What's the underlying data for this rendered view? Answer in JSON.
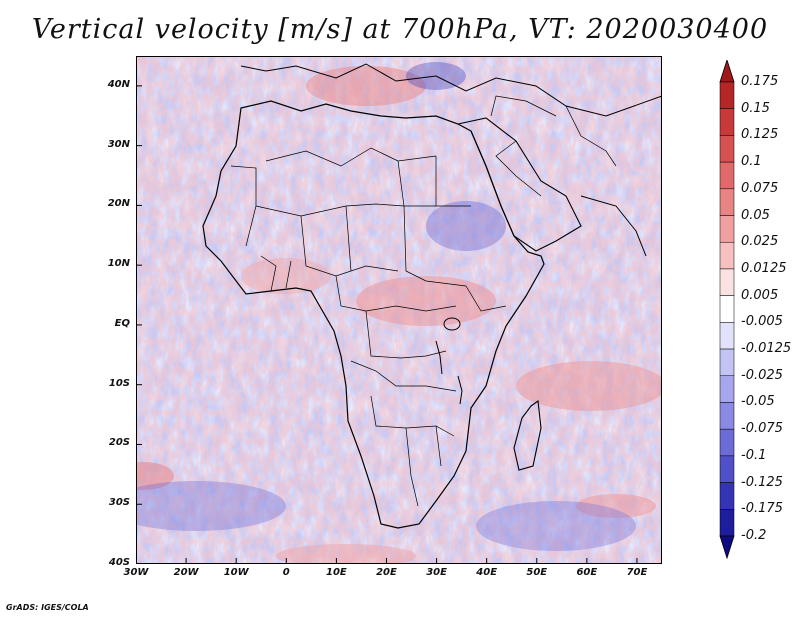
{
  "title": "Vertical velocity [m/s] at 700hPa, VT: 2020030400",
  "credit": "GrADS: IGES/COLA",
  "map": {
    "region": "Africa",
    "lon_range": [
      -30,
      75
    ],
    "lat_range": [
      -40,
      45
    ],
    "lat_ticks": [
      {
        "value": 40,
        "label": "40N"
      },
      {
        "value": 30,
        "label": "30N"
      },
      {
        "value": 20,
        "label": "20N"
      },
      {
        "value": 10,
        "label": "10N"
      },
      {
        "value": 0,
        "label": "EQ"
      },
      {
        "value": -10,
        "label": "10S"
      },
      {
        "value": -20,
        "label": "20S"
      },
      {
        "value": -30,
        "label": "30S"
      },
      {
        "value": -40,
        "label": "40S"
      }
    ],
    "lon_ticks": [
      {
        "value": -30,
        "label": "30W"
      },
      {
        "value": -20,
        "label": "20W"
      },
      {
        "value": -10,
        "label": "10W"
      },
      {
        "value": 0,
        "label": "0"
      },
      {
        "value": 10,
        "label": "10E"
      },
      {
        "value": 20,
        "label": "20E"
      },
      {
        "value": 30,
        "label": "30E"
      },
      {
        "value": 40,
        "label": "40E"
      },
      {
        "value": 50,
        "label": "50E"
      },
      {
        "value": 60,
        "label": "60E"
      },
      {
        "value": 70,
        "label": "70E"
      }
    ]
  },
  "colorbar": {
    "units": "m/s",
    "labels": [
      "0.175",
      "0.15",
      "0.125",
      "0.1",
      "0.075",
      "0.05",
      "0.025",
      "0.0125",
      "0.005",
      "-0.005",
      "-0.0125",
      "-0.025",
      "-0.05",
      "-0.075",
      "-0.1",
      "-0.125",
      "-0.175",
      "-0.2"
    ],
    "colors": [
      "#a01818",
      "#b52626",
      "#c83a3a",
      "#d65252",
      "#e06a6a",
      "#e88484",
      "#f0a0a0",
      "#f6c0c0",
      "#fbe2e2",
      "#ffffff",
      "#e2e2fb",
      "#c4c4f4",
      "#a6a6ec",
      "#8a8ae2",
      "#6c6cd6",
      "#5050c8",
      "#3434b4",
      "#1e1e9c",
      "#0c0c80"
    ]
  }
}
